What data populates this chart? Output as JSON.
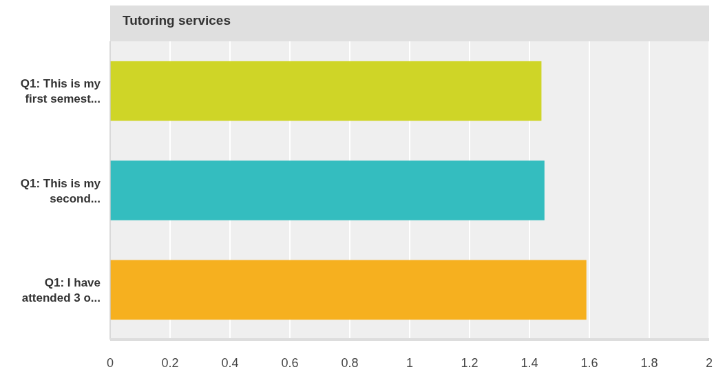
{
  "chart_data": {
    "type": "bar",
    "orientation": "horizontal",
    "title": "Tutoring services",
    "categories": [
      "Q1: This is my first semest...",
      "Q1: This is my second...",
      "Q1: I have attended 3 o..."
    ],
    "values": [
      1.44,
      1.45,
      1.59
    ],
    "colors": [
      "#cfd527",
      "#34bdbf",
      "#f6b01f"
    ],
    "xlim": [
      0,
      2
    ],
    "xticks": [
      0,
      0.2,
      0.4,
      0.6,
      0.8,
      1,
      1.2,
      1.4,
      1.6,
      1.8,
      2
    ],
    "grid": "x"
  }
}
